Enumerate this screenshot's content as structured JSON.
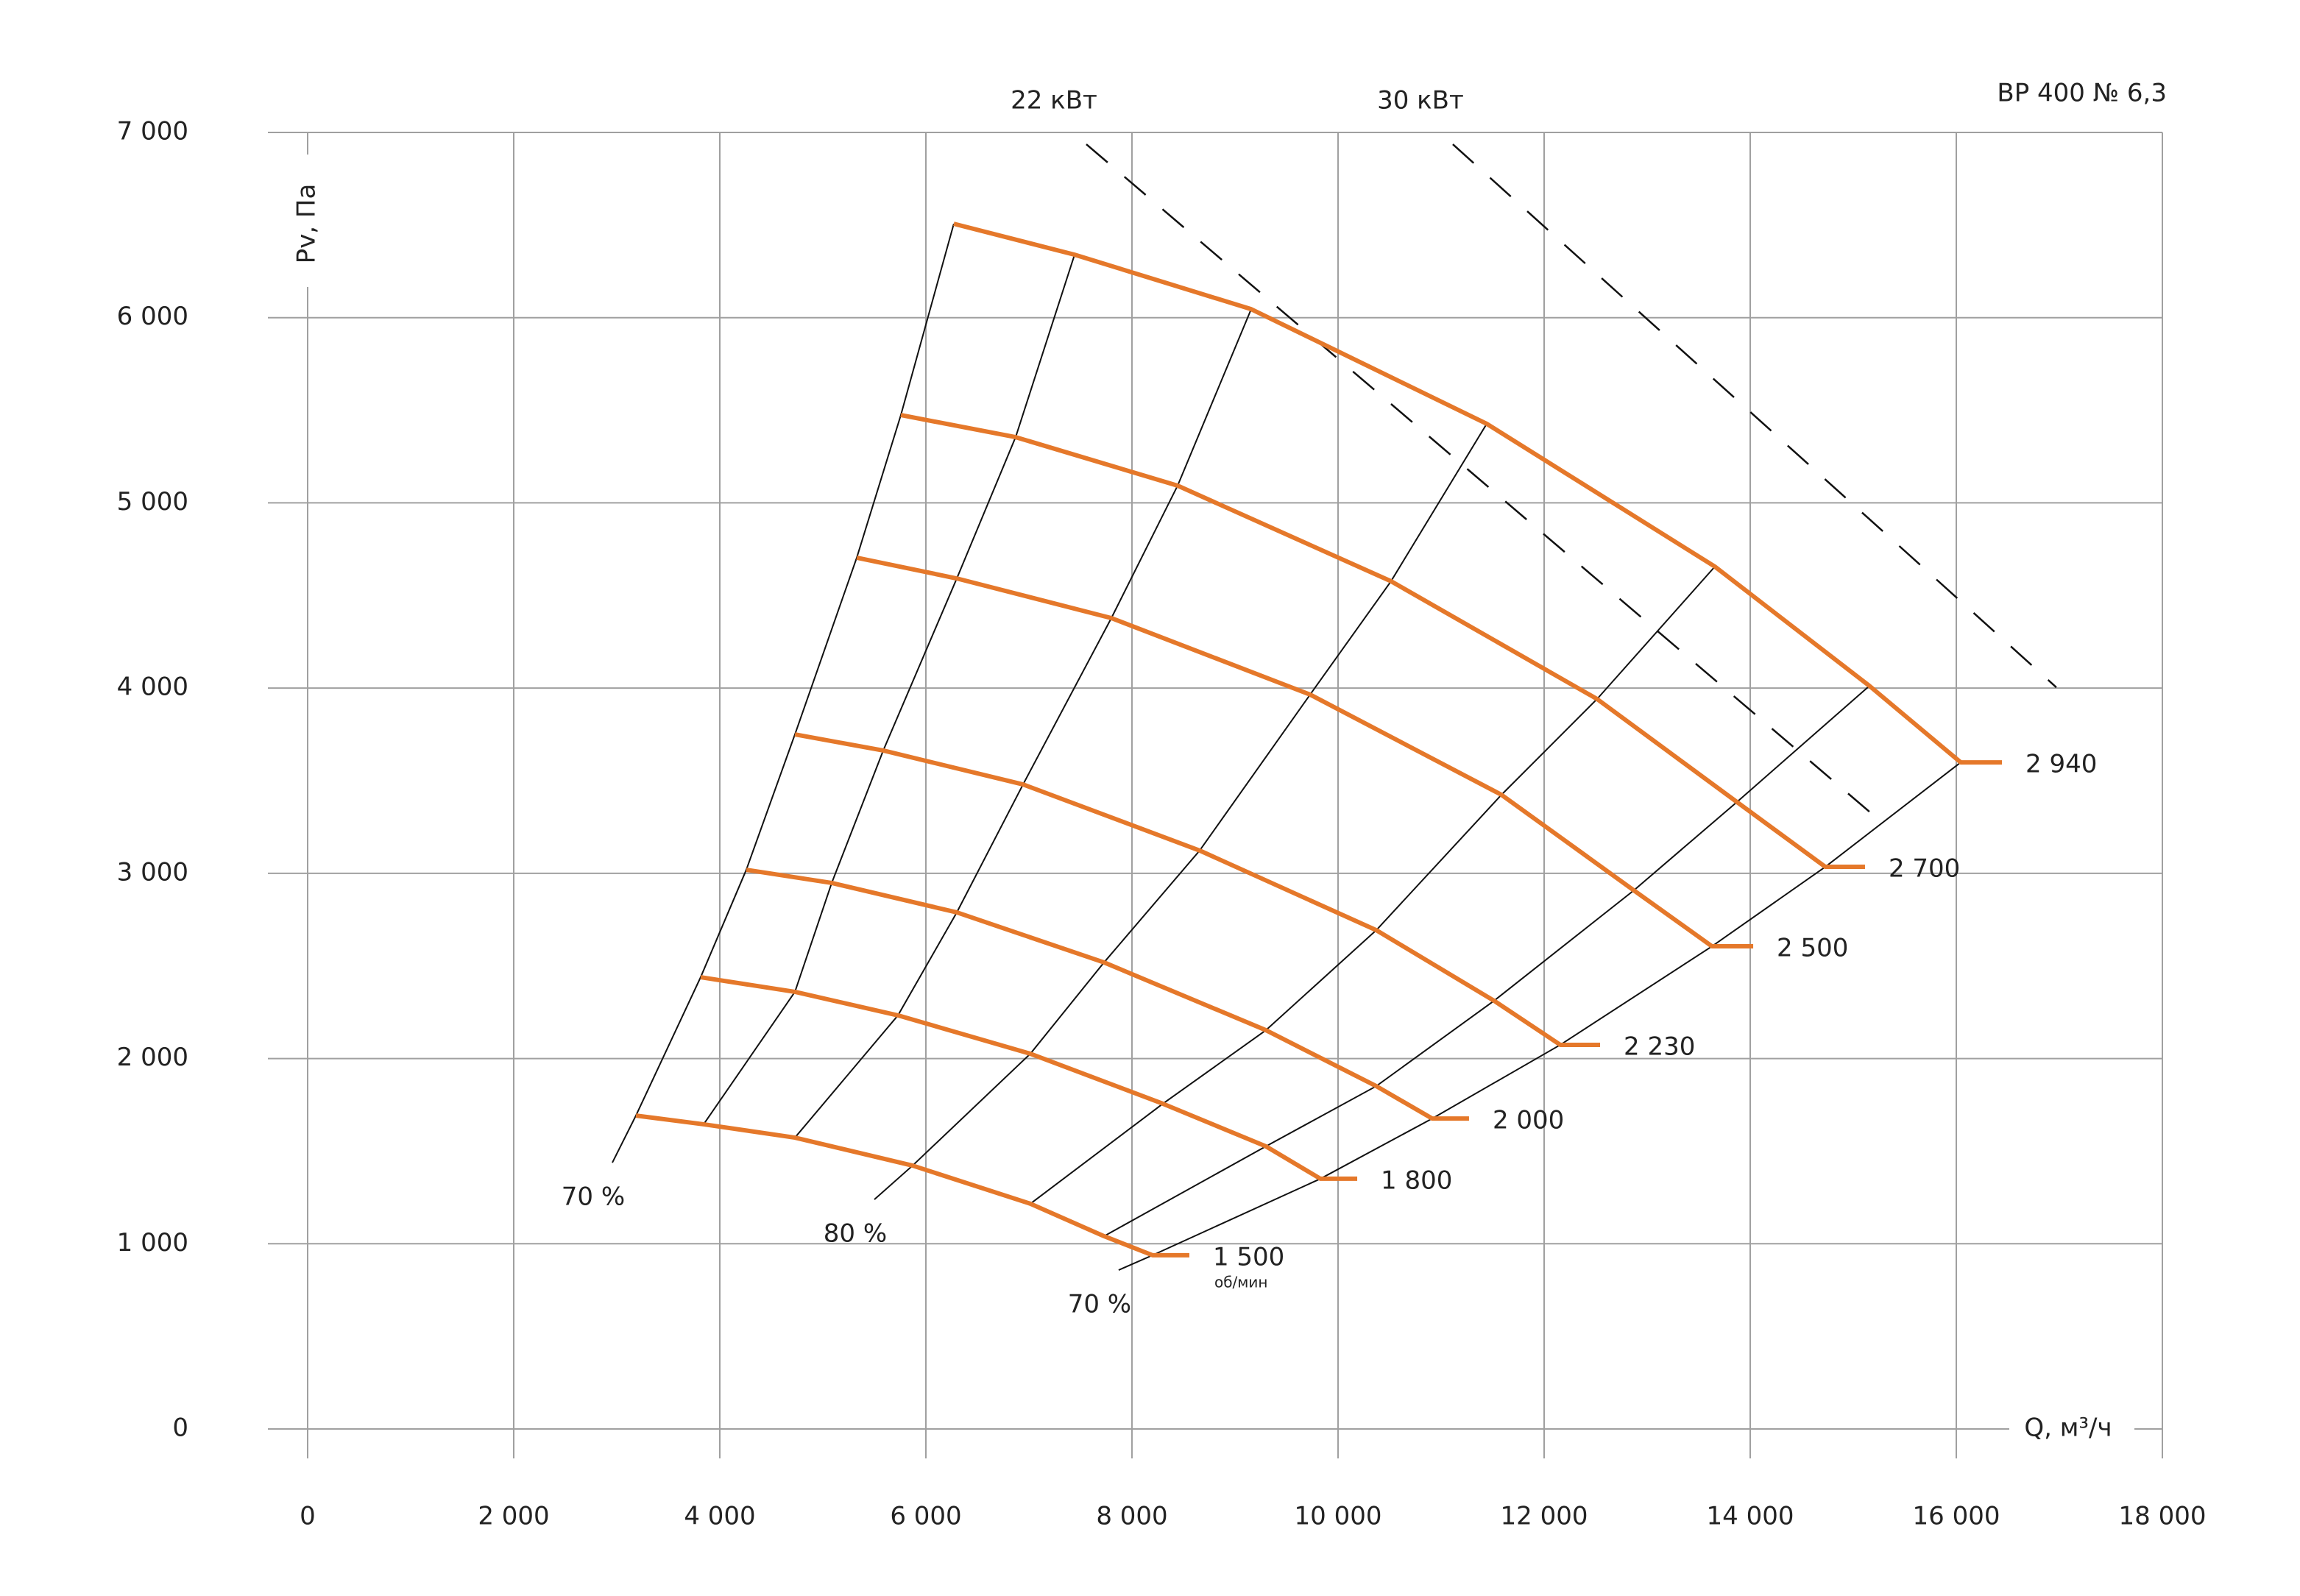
{
  "chart_data": {
    "type": "line",
    "title": "ВР 400 № 6,3",
    "x_label": "Q, м³/ч",
    "y_label": "Pv, Па",
    "xlim": [
      0,
      18000
    ],
    "ylim": [
      0,
      7000
    ],
    "xticks": [
      0,
      {
        "value": 2000,
        "label": "2 000"
      },
      {
        "value": 4000,
        "label": "4 000"
      },
      {
        "value": 6000,
        "label": "6 000"
      },
      {
        "value": 8000,
        "label": "8 000"
      },
      {
        "value": 10000,
        "label": "10 000"
      },
      {
        "value": 12000,
        "label": "12 000"
      },
      {
        "value": 14000,
        "label": "14 000"
      },
      {
        "value": 16000,
        "label": "16 000"
      },
      {
        "value": 18000,
        "label": "18 000"
      }
    ],
    "yticks": [
      0,
      {
        "value": 1000,
        "label": "1 000"
      },
      {
        "value": 2000,
        "label": "2 000"
      },
      {
        "value": 3000,
        "label": "3 000"
      },
      {
        "value": 4000,
        "label": "4 000"
      },
      {
        "value": 5000,
        "label": "5 000"
      },
      {
        "value": 6000,
        "label": "6 000"
      },
      {
        "value": 7000,
        "label": "7 000"
      }
    ],
    "grid": true,
    "speed_unit": "об/мин",
    "series": [
      {
        "name": "1 500",
        "color": "#e5782a",
        "x": [
          3186,
          3843,
          4729,
          5871,
          7014,
          7729,
          8200,
          8557
        ],
        "y": [
          1692,
          1645,
          1573,
          1422,
          1216,
          1041,
          938,
          938
        ]
      },
      {
        "name": "1 800",
        "color": "#e5782a",
        "x": [
          3814,
          4729,
          5729,
          7014,
          8300,
          9300,
          9829,
          10186
        ],
        "y": [
          2439,
          2360,
          2233,
          2026,
          1756,
          1526,
          1351,
          1351
        ]
      },
      {
        "name": "2 000",
        "color": "#e5782a",
        "x": [
          4257,
          5086,
          6300,
          7729,
          9300,
          10371,
          10914,
          11271
        ],
        "y": [
          3019,
          2948,
          2789,
          2519,
          2153,
          1851,
          1676,
          1676
        ]
      },
      {
        "name": "2 230",
        "color": "#e5782a",
        "x": [
          4729,
          5586,
          6943,
          8657,
          10371,
          11514,
          12157,
          12543
        ],
        "y": [
          3750,
          3663,
          3480,
          3123,
          2693,
          2312,
          2074,
          2074
        ]
      },
      {
        "name": "2 500",
        "color": "#e5782a",
        "x": [
          5329,
          6300,
          7800,
          9729,
          11586,
          12871,
          13629,
          14029
        ],
        "y": [
          4704,
          4592,
          4378,
          3965,
          3424,
          2908,
          2606,
          2606
        ]
      },
      {
        "name": "2 700",
        "color": "#e5782a",
        "x": [
          5757,
          6871,
          8443,
          10514,
          12514,
          13871,
          14729,
          15114
        ],
        "y": [
          5474,
          5355,
          5093,
          4577,
          3941,
          3385,
          3035,
          3035
        ]
      },
      {
        "name": "2 940",
        "color": "#e5782a",
        "x": [
          6271,
          7443,
          9157,
          11443,
          13657,
          15157,
          16043,
          16443
        ],
        "y": [
          6507,
          6340,
          6046,
          5427,
          4656,
          4012,
          3599,
          3599
        ]
      }
    ],
    "efficiency_lines": [
      {
        "label": "70 %",
        "x": [
          6271,
          5757,
          5329,
          4729,
          4257,
          3814,
          3186,
          2957
        ],
        "y": [
          6507,
          5474,
          4704,
          3750,
          3019,
          2439,
          1692,
          1438
        ]
      },
      {
        "x": [
          7443,
          6871,
          6300,
          5586,
          5086,
          4729,
          3843
        ],
        "y": [
          6340,
          5355,
          4592,
          3663,
          2948,
          2360,
          1645
        ]
      },
      {
        "x": [
          9157,
          8443,
          7800,
          6943,
          6300,
          5729,
          4729
        ],
        "y": [
          6046,
          5093,
          4378,
          3480,
          2789,
          2233,
          1573
        ]
      },
      {
        "label": "80 %",
        "x": [
          11443,
          10514,
          9729,
          8657,
          7729,
          7014,
          5871,
          5500
        ],
        "y": [
          5427,
          4577,
          3965,
          3123,
          2519,
          2026,
          1422,
          1239
        ]
      },
      {
        "x": [
          13657,
          12514,
          11586,
          10371,
          9300,
          8300,
          7014
        ],
        "y": [
          4656,
          3941,
          3424,
          2693,
          2153,
          1756,
          1216
        ]
      },
      {
        "x": [
          15157,
          13871,
          12871,
          11514,
          10371,
          9300,
          7729
        ],
        "y": [
          4012,
          3385,
          2908,
          2312,
          1851,
          1526,
          1041
        ]
      },
      {
        "label": "70 %",
        "x": [
          16043,
          14729,
          13629,
          12157,
          10914,
          9829,
          8200,
          7871
        ],
        "y": [
          3599,
          3035,
          2606,
          2074,
          1676,
          1351,
          938,
          858
        ]
      }
    ],
    "power_lines": [
      {
        "label": "22 кВт",
        "x": [
          7557,
          15300
        ],
        "y": [
          6936,
          3265
        ]
      },
      {
        "label": "30 кВт",
        "x": [
          11114,
          16971
        ],
        "y": [
          6936,
          4004
        ]
      }
    ]
  }
}
